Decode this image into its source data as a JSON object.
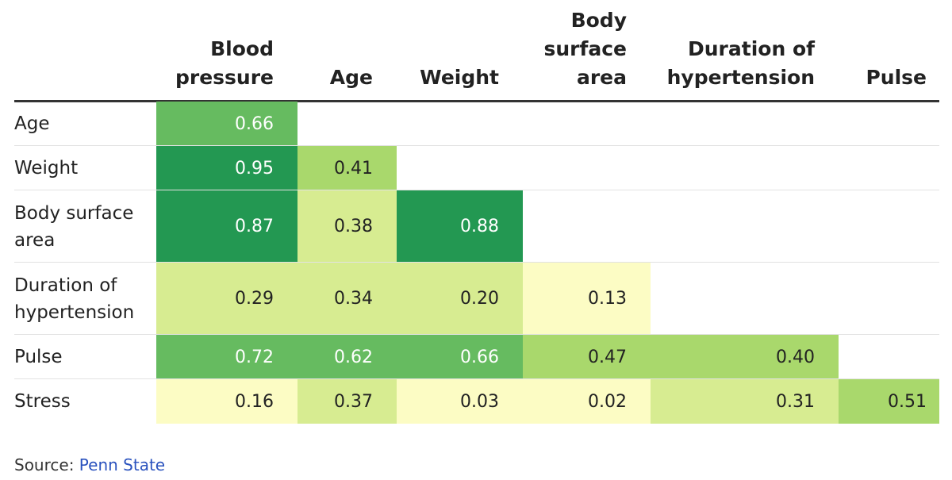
{
  "chart_data": {
    "type": "table",
    "title": "",
    "columns": [
      "Blood\npressure",
      "Age",
      "Weight",
      "Body\nsurface\narea",
      "Duration of\nhypertension",
      "Pulse"
    ],
    "rows": [
      {
        "label": "Age",
        "values": [
          0.66,
          null,
          null,
          null,
          null,
          null
        ]
      },
      {
        "label": "Weight",
        "values": [
          0.95,
          0.41,
          null,
          null,
          null,
          null
        ]
      },
      {
        "label": "Body surface\narea",
        "values": [
          0.87,
          0.38,
          0.88,
          null,
          null,
          null
        ]
      },
      {
        "label": "Duration of\nhypertension",
        "values": [
          0.29,
          0.34,
          0.2,
          0.13,
          null,
          null
        ]
      },
      {
        "label": "Pulse",
        "values": [
          0.72,
          0.62,
          0.66,
          0.47,
          0.4,
          null
        ]
      },
      {
        "label": "Stress",
        "values": [
          0.16,
          0.37,
          0.03,
          0.02,
          0.31,
          0.51
        ]
      }
    ],
    "color_scale": [
      {
        "min": 0.0,
        "color": "#fcfcc4"
      },
      {
        "min": 0.2,
        "color": "#d7ec91"
      },
      {
        "min": 0.4,
        "color": "#a9d86c"
      },
      {
        "min": 0.6,
        "color": "#66bb60"
      },
      {
        "min": 0.8,
        "color": "#239852"
      }
    ]
  },
  "footer": {
    "source_label": "Source: ",
    "source_link": "Penn State"
  }
}
